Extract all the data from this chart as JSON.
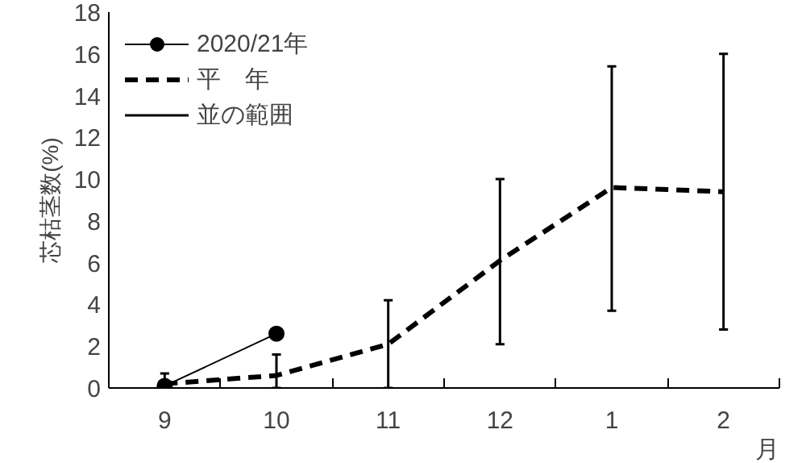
{
  "chart_data": {
    "type": "line",
    "xlabel": "月",
    "ylabel": "芯枯茎数(%)",
    "categories": [
      "9",
      "10",
      "11",
      "12",
      "1",
      "2"
    ],
    "series": [
      {
        "name": "2020/21年",
        "color": "#000000",
        "marker": "circle",
        "line_style": "solid",
        "values": [
          0.1,
          2.6,
          null,
          null,
          null,
          null
        ]
      },
      {
        "name": "平　年",
        "color": "#000000",
        "marker": "none",
        "line_style": "dashed",
        "values": [
          0.2,
          0.6,
          2.1,
          6.1,
          9.6,
          9.4
        ],
        "errors": [
          [
            0,
            0.7
          ],
          [
            0,
            1.6
          ],
          [
            0,
            4.2
          ],
          [
            2.1,
            10.0
          ],
          [
            3.7,
            15.4
          ],
          [
            2.8,
            16.0
          ]
        ]
      },
      {
        "name": "並の範囲",
        "color": "#000000",
        "values": [
          null,
          null,
          null,
          null,
          null,
          null
        ]
      }
    ],
    "ylim": [
      0,
      18
    ],
    "yticks": [
      0,
      2,
      4,
      6,
      8,
      10,
      12,
      14,
      16,
      18
    ],
    "grid": false,
    "legend": "top left"
  }
}
